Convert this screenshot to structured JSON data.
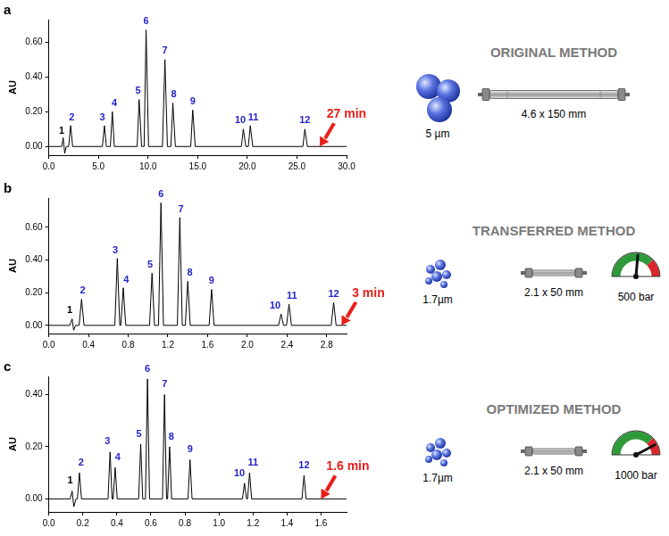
{
  "chart_data": [
    {
      "type": "line",
      "panel": "a",
      "y_label": "AU",
      "color": "#000000",
      "marker": "none",
      "grid": false,
      "x": [
        0,
        1.3,
        1.45,
        1.6,
        1.75,
        2.0,
        2.2,
        2.4,
        5.4,
        5.6,
        5.8,
        6.2,
        6.4,
        6.6,
        8.9,
        9.1,
        9.35,
        9.6,
        9.8,
        10.05,
        11.45,
        11.7,
        11.95,
        12.3,
        12.5,
        12.75,
        14.3,
        14.5,
        14.75,
        19.4,
        19.6,
        19.85,
        20.1,
        20.3,
        20.55,
        25.6,
        25.8,
        26.05,
        30
      ],
      "values": [
        0,
        0,
        0.05,
        -0.04,
        0,
        0,
        0.12,
        0,
        0,
        0.12,
        0,
        0,
        0.2,
        0,
        0,
        0.27,
        0,
        0,
        0.67,
        0,
        0,
        0.5,
        0,
        0,
        0.25,
        0,
        0,
        0.21,
        0,
        0,
        0.1,
        0,
        0,
        0.12,
        0,
        0,
        0.1,
        0,
        0
      ],
      "xlim": [
        0,
        30
      ],
      "xticks": [
        {
          "value": 0,
          "label": "0.0"
        },
        {
          "value": 5,
          "label": "5.0"
        },
        {
          "value": 10,
          "label": "10.0"
        },
        {
          "value": 15,
          "label": "15.0"
        },
        {
          "value": 20,
          "label": "20.0"
        },
        {
          "value": 25,
          "label": "25.0"
        },
        {
          "value": 30,
          "label": "30.0"
        }
      ],
      "ylim": [
        -0.05,
        0.73
      ],
      "yticks": [
        {
          "value": 0,
          "label": "0.00"
        },
        {
          "value": 0.2,
          "label": "0.20"
        },
        {
          "value": 0.4,
          "label": "0.40"
        },
        {
          "value": 0.6,
          "label": "0.60"
        }
      ],
      "peak_labels": [
        {
          "text": "1",
          "x": 1.3,
          "y": 0.06
        },
        {
          "text": "2",
          "x": 2.3,
          "y": 0.14
        },
        {
          "text": "3",
          "x": 5.4,
          "y": 0.14
        },
        {
          "text": "4",
          "x": 6.6,
          "y": 0.22
        },
        {
          "text": "5",
          "x": 9.0,
          "y": 0.29
        },
        {
          "text": "6",
          "x": 9.8,
          "y": 0.69
        },
        {
          "text": "7",
          "x": 11.7,
          "y": 0.52
        },
        {
          "text": "8",
          "x": 12.6,
          "y": 0.27
        },
        {
          "text": "9",
          "x": 14.5,
          "y": 0.23
        },
        {
          "text": "10",
          "x": 19.3,
          "y": 0.12
        },
        {
          "text": "11",
          "x": 20.6,
          "y": 0.14
        },
        {
          "text": "12",
          "x": 25.8,
          "y": 0.12
        }
      ],
      "annotations": [
        {
          "text": "27 min",
          "x": 27.3,
          "y": 0.0
        }
      ],
      "method": "ORIGINAL METHOD",
      "particle_size": "5 µm",
      "column": "4.6 x 150 mm"
    },
    {
      "type": "line",
      "panel": "b",
      "y_label": "AU",
      "color": "#000000",
      "marker": "none",
      "grid": false,
      "x": [
        0,
        0.21,
        0.235,
        0.25,
        0.27,
        0.305,
        0.33,
        0.355,
        0.665,
        0.69,
        0.715,
        0.725,
        0.75,
        0.775,
        1.015,
        1.04,
        1.065,
        1.105,
        1.13,
        1.155,
        1.295,
        1.32,
        1.345,
        1.375,
        1.4,
        1.425,
        1.615,
        1.64,
        1.665,
        2.315,
        2.34,
        2.365,
        2.395,
        2.42,
        2.445,
        2.845,
        2.87,
        2.895,
        3.0
      ],
      "values": [
        0,
        0,
        0.04,
        -0.03,
        0,
        0,
        0.16,
        0,
        0,
        0.41,
        0,
        0,
        0.23,
        0,
        0,
        0.32,
        0,
        0,
        0.75,
        0,
        0,
        0.66,
        0,
        0,
        0.27,
        0,
        0,
        0.22,
        0,
        0,
        0.07,
        0,
        0,
        0.13,
        0,
        0,
        0.14,
        0,
        0
      ],
      "xlim": [
        0,
        3.0
      ],
      "xticks": [
        {
          "value": 0,
          "label": "0.0"
        },
        {
          "value": 0.4,
          "label": "0.4"
        },
        {
          "value": 0.8,
          "label": "0.8"
        },
        {
          "value": 1.2,
          "label": "1.2"
        },
        {
          "value": 1.6,
          "label": "1.6"
        },
        {
          "value": 2.0,
          "label": "2.0"
        },
        {
          "value": 2.4,
          "label": "2.4"
        },
        {
          "value": 2.8,
          "label": "2.8"
        }
      ],
      "ylim": [
        -0.05,
        0.78
      ],
      "yticks": [
        {
          "value": 0,
          "label": "0.00"
        },
        {
          "value": 0.2,
          "label": "0.20"
        },
        {
          "value": 0.4,
          "label": "0.40"
        },
        {
          "value": 0.6,
          "label": "0.60"
        }
      ],
      "peak_labels": [
        {
          "text": "1",
          "x": 0.21,
          "y": 0.06
        },
        {
          "text": "2",
          "x": 0.34,
          "y": 0.18
        },
        {
          "text": "3",
          "x": 0.67,
          "y": 0.43
        },
        {
          "text": "4",
          "x": 0.78,
          "y": 0.25
        },
        {
          "text": "5",
          "x": 1.02,
          "y": 0.34
        },
        {
          "text": "6",
          "x": 1.13,
          "y": 0.77
        },
        {
          "text": "7",
          "x": 1.33,
          "y": 0.68
        },
        {
          "text": "8",
          "x": 1.42,
          "y": 0.29
        },
        {
          "text": "9",
          "x": 1.64,
          "y": 0.24
        },
        {
          "text": "10",
          "x": 2.28,
          "y": 0.09
        },
        {
          "text": "11",
          "x": 2.45,
          "y": 0.15
        },
        {
          "text": "12",
          "x": 2.87,
          "y": 0.16
        }
      ],
      "annotations": [
        {
          "text": "3 min",
          "x": 2.95,
          "y": 0.0
        }
      ],
      "method": "TRANSFERRED METHOD",
      "particle_size": "1.7µm",
      "column": "2.1 x 50 mm",
      "pressure": "500 bar"
    },
    {
      "type": "line",
      "panel": "c",
      "y_label": "AU",
      "color": "#000000",
      "marker": "none",
      "grid": false,
      "x": [
        0,
        0.125,
        0.137,
        0.147,
        0.16,
        0.168,
        0.18,
        0.192,
        0.348,
        0.36,
        0.372,
        0.378,
        0.39,
        0.402,
        0.528,
        0.54,
        0.552,
        0.568,
        0.58,
        0.592,
        0.668,
        0.68,
        0.692,
        0.698,
        0.71,
        0.722,
        0.818,
        0.83,
        0.842,
        1.138,
        1.15,
        1.162,
        1.168,
        1.18,
        1.192,
        1.488,
        1.5,
        1.512,
        1.75
      ],
      "values": [
        0,
        0,
        0.03,
        -0.03,
        0,
        0,
        0.1,
        0,
        0,
        0.18,
        0,
        0,
        0.12,
        0,
        0,
        0.21,
        0,
        0,
        0.46,
        0,
        0,
        0.4,
        0,
        0,
        0.2,
        0,
        0,
        0.15,
        0,
        0,
        0.06,
        0,
        0,
        0.1,
        0,
        0,
        0.09,
        0,
        0
      ],
      "xlim": [
        0,
        1.75
      ],
      "xticks": [
        {
          "value": 0,
          "label": "0.0"
        },
        {
          "value": 0.2,
          "label": "0.2"
        },
        {
          "value": 0.4,
          "label": "0.4"
        },
        {
          "value": 0.6,
          "label": "0.6"
        },
        {
          "value": 0.8,
          "label": "0.8"
        },
        {
          "value": 1.0,
          "label": "1.0"
        },
        {
          "value": 1.2,
          "label": "1.2"
        },
        {
          "value": 1.4,
          "label": "1.4"
        },
        {
          "value": 1.6,
          "label": "1.6"
        }
      ],
      "ylim": [
        -0.05,
        0.47
      ],
      "yticks": [
        {
          "value": 0,
          "label": "0.00"
        },
        {
          "value": 0.2,
          "label": "0.20"
        },
        {
          "value": 0.4,
          "label": "0.40"
        }
      ],
      "peak_labels": [
        {
          "text": "1",
          "x": 0.125,
          "y": 0.05
        },
        {
          "text": "2",
          "x": 0.19,
          "y": 0.12
        },
        {
          "text": "3",
          "x": 0.345,
          "y": 0.2
        },
        {
          "text": "4",
          "x": 0.405,
          "y": 0.14
        },
        {
          "text": "5",
          "x": 0.53,
          "y": 0.23
        },
        {
          "text": "6",
          "x": 0.58,
          "y": 0.48
        },
        {
          "text": "7",
          "x": 0.68,
          "y": 0.42
        },
        {
          "text": "8",
          "x": 0.72,
          "y": 0.22
        },
        {
          "text": "9",
          "x": 0.83,
          "y": 0.17
        },
        {
          "text": "10",
          "x": 1.12,
          "y": 0.08
        },
        {
          "text": "11",
          "x": 1.2,
          "y": 0.12
        },
        {
          "text": "12",
          "x": 1.5,
          "y": 0.11
        }
      ],
      "annotations": [
        {
          "text": "1.6 min",
          "x": 1.6,
          "y": 0.0
        }
      ],
      "method": "OPTIMIZED METHOD",
      "particle_size": "1.7µm",
      "column": "2.1 x 50 mm",
      "pressure": "1000 bar"
    }
  ]
}
